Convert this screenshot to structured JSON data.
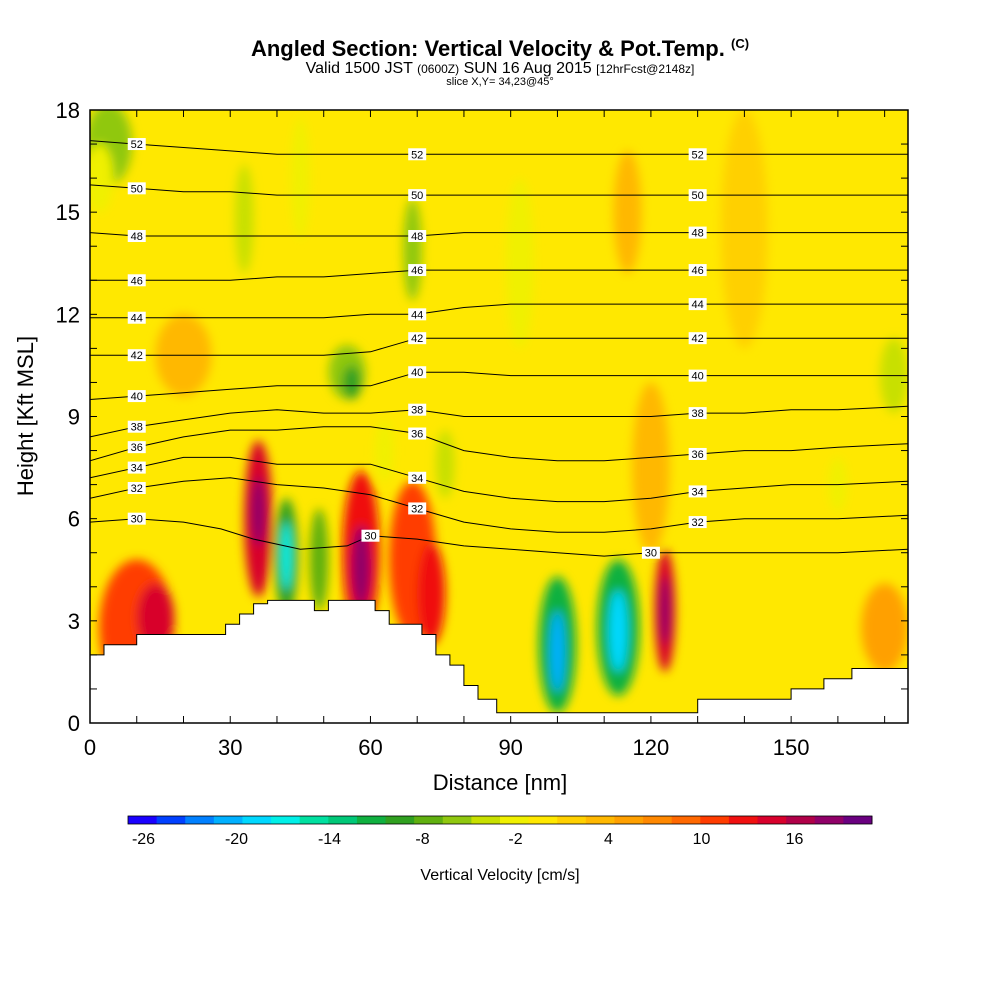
{
  "titles": {
    "main": "Angled Section: Vertical Velocity & Pot.Temp.",
    "main_suffix": "(C)",
    "valid_pre": "Valid 1500 JST",
    "valid_utc": "(0600Z)",
    "valid_date": "SUN 16 Aug 2015",
    "valid_fcst": "[12hrFcst@2148z]",
    "slice": "slice X,Y= 34,23@45°"
  },
  "chart_data": {
    "type": "heatmap",
    "xlabel": "Distance [nm]",
    "ylabel": "Height [Kft MSL]",
    "xlim": [
      0,
      175
    ],
    "ylim": [
      0,
      18
    ],
    "x_ticks": [
      0,
      30,
      60,
      90,
      120,
      150
    ],
    "y_ticks": [
      0,
      3,
      6,
      9,
      12,
      15,
      18
    ],
    "colorbar": {
      "label": "Vertical Velocity [cm/s]",
      "tick_values": [
        -26,
        -20,
        -14,
        -8,
        -2,
        4,
        10,
        16
      ],
      "min": -27,
      "max": 21,
      "colors": [
        "#1a00ff",
        "#0040ff",
        "#0080ff",
        "#00b0ff",
        "#00d8ff",
        "#00f0e8",
        "#00e0a0",
        "#00c878",
        "#10b040",
        "#30a020",
        "#60b010",
        "#90c810",
        "#c8e000",
        "#f0f000",
        "#ffe800",
        "#ffd000",
        "#ffb800",
        "#ffa000",
        "#ff8800",
        "#ff6800",
        "#ff3c00",
        "#f01010",
        "#d8002c",
        "#b00048",
        "#900068",
        "#6a0080"
      ]
    },
    "theta_contours": [
      {
        "label": "30",
        "x": [
          0,
          10,
          20,
          28,
          35,
          45,
          55,
          60,
          70,
          80,
          90,
          100,
          110,
          120,
          130,
          140,
          150,
          160,
          175
        ],
        "y": [
          5.9,
          6.0,
          5.9,
          5.7,
          5.4,
          5.1,
          5.2,
          5.5,
          5.4,
          5.2,
          5.1,
          5.0,
          4.9,
          5.0,
          5.0,
          5.0,
          5.0,
          5.0,
          5.1
        ]
      },
      {
        "label": "32",
        "x": [
          0,
          10,
          20,
          30,
          40,
          50,
          60,
          70,
          80,
          90,
          100,
          110,
          120,
          130,
          140,
          150,
          160,
          175
        ],
        "y": [
          6.6,
          6.9,
          7.1,
          7.2,
          7.0,
          6.9,
          6.7,
          6.3,
          5.9,
          5.7,
          5.6,
          5.6,
          5.7,
          5.9,
          6.0,
          6.0,
          6.0,
          6.1
        ]
      },
      {
        "label": "34",
        "x": [
          0,
          10,
          20,
          30,
          40,
          50,
          60,
          70,
          80,
          90,
          100,
          110,
          120,
          130,
          140,
          150,
          160,
          175
        ],
        "y": [
          7.2,
          7.5,
          7.8,
          7.8,
          7.6,
          7.6,
          7.6,
          7.2,
          6.8,
          6.6,
          6.5,
          6.5,
          6.6,
          6.8,
          6.9,
          7.0,
          7.0,
          7.1
        ]
      },
      {
        "label": "36",
        "x": [
          0,
          10,
          20,
          30,
          40,
          50,
          60,
          70,
          80,
          90,
          100,
          110,
          120,
          130,
          140,
          150,
          160,
          175
        ],
        "y": [
          7.7,
          8.1,
          8.4,
          8.6,
          8.6,
          8.7,
          8.7,
          8.5,
          8.0,
          7.8,
          7.7,
          7.7,
          7.8,
          7.9,
          8.0,
          8.0,
          8.1,
          8.2
        ]
      },
      {
        "label": "38",
        "x": [
          0,
          10,
          20,
          30,
          40,
          50,
          60,
          70,
          80,
          90,
          100,
          110,
          120,
          130,
          140,
          150,
          160,
          175
        ],
        "y": [
          8.4,
          8.7,
          8.9,
          9.1,
          9.2,
          9.1,
          9.1,
          9.2,
          9.0,
          9.0,
          9.0,
          9.0,
          9.0,
          9.1,
          9.1,
          9.2,
          9.2,
          9.3
        ]
      },
      {
        "label": "40",
        "x": [
          0,
          10,
          20,
          30,
          40,
          50,
          60,
          70,
          80,
          90,
          100,
          110,
          120,
          130,
          140,
          150,
          160,
          175
        ],
        "y": [
          9.5,
          9.6,
          9.7,
          9.8,
          9.9,
          9.9,
          9.9,
          10.3,
          10.3,
          10.2,
          10.2,
          10.2,
          10.2,
          10.2,
          10.2,
          10.2,
          10.2,
          10.2
        ]
      },
      {
        "label": "42",
        "x": [
          0,
          10,
          20,
          30,
          40,
          50,
          60,
          70,
          80,
          90,
          100,
          110,
          120,
          130,
          140,
          150,
          160,
          175
        ],
        "y": [
          10.8,
          10.8,
          10.8,
          10.8,
          10.8,
          10.8,
          10.9,
          11.3,
          11.3,
          11.3,
          11.3,
          11.3,
          11.3,
          11.3,
          11.3,
          11.3,
          11.3,
          11.3
        ]
      },
      {
        "label": "44",
        "x": [
          0,
          10,
          20,
          30,
          40,
          50,
          60,
          70,
          80,
          90,
          100,
          110,
          120,
          130,
          140,
          150,
          160,
          175
        ],
        "y": [
          11.9,
          11.9,
          11.9,
          11.9,
          11.9,
          11.9,
          12.0,
          12.0,
          12.2,
          12.3,
          12.3,
          12.3,
          12.3,
          12.3,
          12.3,
          12.3,
          12.3,
          12.3
        ]
      },
      {
        "label": "46",
        "x": [
          0,
          10,
          20,
          30,
          40,
          50,
          60,
          70,
          80,
          90,
          100,
          110,
          120,
          130,
          140,
          150,
          160,
          175
        ],
        "y": [
          13.0,
          13.0,
          13.0,
          13.0,
          13.1,
          13.1,
          13.2,
          13.3,
          13.3,
          13.3,
          13.3,
          13.3,
          13.3,
          13.3,
          13.3,
          13.3,
          13.3,
          13.3
        ]
      },
      {
        "label": "48",
        "x": [
          0,
          10,
          20,
          30,
          40,
          50,
          60,
          70,
          80,
          90,
          100,
          110,
          120,
          130,
          140,
          150,
          160,
          175
        ],
        "y": [
          14.4,
          14.3,
          14.3,
          14.3,
          14.3,
          14.3,
          14.3,
          14.3,
          14.4,
          14.4,
          14.4,
          14.4,
          14.4,
          14.4,
          14.4,
          14.4,
          14.4,
          14.4
        ]
      },
      {
        "label": "50",
        "x": [
          0,
          10,
          20,
          30,
          40,
          50,
          60,
          70,
          80,
          90,
          100,
          110,
          120,
          130,
          140,
          150,
          160,
          175
        ],
        "y": [
          15.8,
          15.7,
          15.6,
          15.6,
          15.5,
          15.5,
          15.5,
          15.5,
          15.5,
          15.5,
          15.5,
          15.5,
          15.5,
          15.5,
          15.5,
          15.5,
          15.5,
          15.5
        ]
      },
      {
        "label": "52",
        "x": [
          0,
          10,
          20,
          30,
          40,
          50,
          60,
          70,
          80,
          90,
          100,
          110,
          120,
          130,
          140,
          150,
          160,
          175
        ],
        "y": [
          17.1,
          17.0,
          16.9,
          16.8,
          16.7,
          16.7,
          16.7,
          16.7,
          16.7,
          16.7,
          16.7,
          16.7,
          16.7,
          16.7,
          16.7,
          16.7,
          16.7,
          16.7
        ]
      }
    ],
    "terrain": {
      "x": [
        0,
        3,
        3,
        10,
        10,
        20,
        20,
        29,
        29,
        32,
        32,
        35,
        35,
        38,
        38,
        48,
        48,
        51,
        51,
        61,
        61,
        64,
        64,
        71,
        71,
        74,
        74,
        77,
        77,
        80,
        80,
        83,
        83,
        87,
        87,
        90,
        90,
        130,
        130,
        150,
        150,
        157,
        157,
        163,
        163,
        175
      ],
      "y": [
        2.0,
        2.0,
        2.3,
        2.3,
        2.6,
        2.6,
        2.6,
        2.6,
        2.9,
        2.9,
        3.2,
        3.2,
        3.5,
        3.5,
        3.6,
        3.6,
        3.3,
        3.3,
        3.6,
        3.6,
        3.3,
        3.3,
        2.9,
        2.9,
        2.6,
        2.6,
        2.0,
        2.0,
        1.7,
        1.7,
        1.1,
        1.1,
        0.7,
        0.7,
        0.3,
        0.3,
        0.3,
        0.3,
        0.7,
        0.7,
        1.0,
        1.0,
        1.3,
        1.3,
        1.6,
        1.6
      ]
    },
    "velocity_cells": [
      {
        "x": 10,
        "y": 2.8,
        "rx": 8,
        "ry": 2.0,
        "value": 10
      },
      {
        "x": 14,
        "y": 3.1,
        "rx": 4,
        "ry": 1.0,
        "value": 14
      },
      {
        "x": 36,
        "y": 6.0,
        "rx": 3,
        "ry": 2.3,
        "value": 14
      },
      {
        "x": 36,
        "y": 6.2,
        "rx": 1.5,
        "ry": 1.0,
        "value": 18
      },
      {
        "x": 42,
        "y": 4.9,
        "rx": 2.5,
        "ry": 1.7,
        "value": -10
      },
      {
        "x": 42,
        "y": 4.9,
        "rx": 1.2,
        "ry": 1.0,
        "value": -16
      },
      {
        "x": 49,
        "y": 4.8,
        "rx": 2,
        "ry": 1.5,
        "value": -8
      },
      {
        "x": 58,
        "y": 5.0,
        "rx": 4,
        "ry": 2.4,
        "value": 12
      },
      {
        "x": 58,
        "y": 4.6,
        "rx": 2,
        "ry": 1.2,
        "value": 18
      },
      {
        "x": 69,
        "y": 4.8,
        "rx": 5,
        "ry": 2.3,
        "value": 10
      },
      {
        "x": 73,
        "y": 3.8,
        "rx": 3,
        "ry": 1.5,
        "value": 12
      },
      {
        "x": 55,
        "y": 10.3,
        "rx": 4,
        "ry": 0.8,
        "value": -6
      },
      {
        "x": 56,
        "y": 10.0,
        "rx": 2,
        "ry": 0.5,
        "value": -9
      },
      {
        "x": 69,
        "y": 13.9,
        "rx": 2,
        "ry": 1.5,
        "value": -5
      },
      {
        "x": 76,
        "y": 7.6,
        "rx": 2,
        "ry": 1.0,
        "value": -4
      },
      {
        "x": 63,
        "y": 8.0,
        "rx": 2,
        "ry": 0.9,
        "value": -3
      },
      {
        "x": 33,
        "y": 14.8,
        "rx": 2,
        "ry": 1.6,
        "value": -4
      },
      {
        "x": 45,
        "y": 16.0,
        "rx": 2,
        "ry": 1.8,
        "value": -3
      },
      {
        "x": 4,
        "y": 17.0,
        "rx": 5,
        "ry": 1.2,
        "value": -5
      },
      {
        "x": 2,
        "y": 16.0,
        "rx": 3,
        "ry": 1.0,
        "value": -3
      },
      {
        "x": 100,
        "y": 2.3,
        "rx": 4,
        "ry": 2.0,
        "value": -12
      },
      {
        "x": 100,
        "y": 2.1,
        "rx": 1.6,
        "ry": 1.2,
        "value": -20
      },
      {
        "x": 113,
        "y": 2.8,
        "rx": 4.5,
        "ry": 2.0,
        "value": -12
      },
      {
        "x": 113,
        "y": 2.7,
        "rx": 2,
        "ry": 1.2,
        "value": -18
      },
      {
        "x": 123,
        "y": 3.3,
        "rx": 2.2,
        "ry": 1.8,
        "value": 14
      },
      {
        "x": 123,
        "y": 3.3,
        "rx": 1.1,
        "ry": 1.0,
        "value": 19
      },
      {
        "x": 170,
        "y": 2.8,
        "rx": 5,
        "ry": 1.3,
        "value": 6
      },
      {
        "x": 160,
        "y": 7.0,
        "rx": 2,
        "ry": 0.8,
        "value": -3
      },
      {
        "x": 172,
        "y": 10.2,
        "rx": 3,
        "ry": 1.1,
        "value": -4
      },
      {
        "x": 115,
        "y": 15.0,
        "rx": 3,
        "ry": 1.8,
        "value": 3
      },
      {
        "x": 140,
        "y": 14.5,
        "rx": 5,
        "ry": 3.5,
        "value": 2
      },
      {
        "x": 20,
        "y": 10.8,
        "rx": 6,
        "ry": 1.2,
        "value": 3
      },
      {
        "x": 92,
        "y": 13.5,
        "rx": 3,
        "ry": 2.5,
        "value": -2
      },
      {
        "x": 120,
        "y": 7.5,
        "rx": 4,
        "ry": 2.5,
        "value": 3
      }
    ],
    "background_value": 0
  }
}
